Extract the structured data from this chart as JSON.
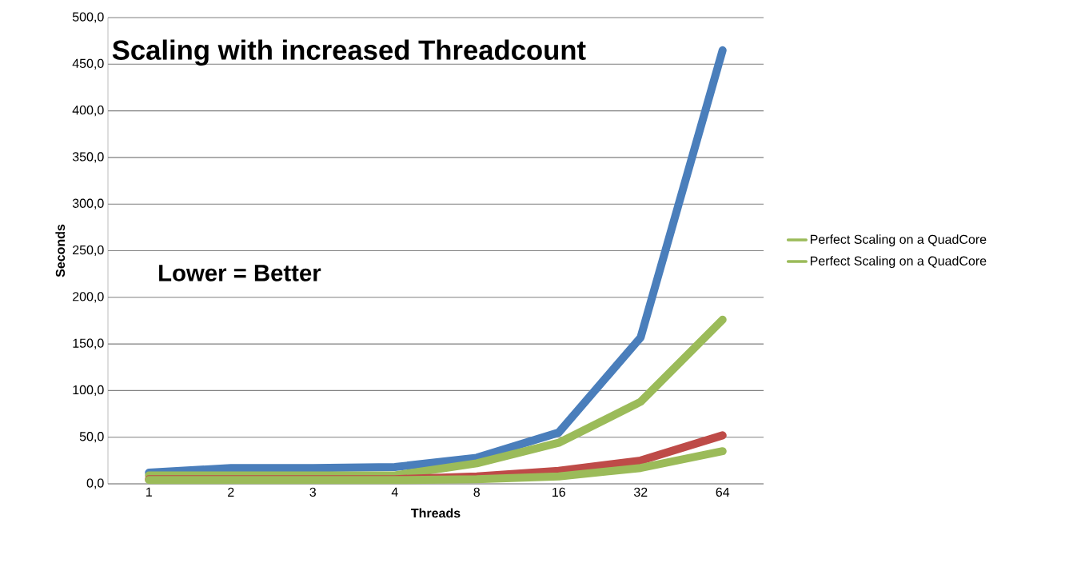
{
  "chart_data": {
    "type": "line",
    "title": "Scaling with increased Threadcount",
    "xlabel": "Threads",
    "ylabel": "Seconds",
    "annotations": [
      "Lower = Better"
    ],
    "categories": [
      "1",
      "2",
      "3",
      "4",
      "8",
      "16",
      "32",
      "64"
    ],
    "series": [
      {
        "color": "#4a7ebb",
        "values": [
          12,
          17,
          17,
          18,
          28,
          55,
          157,
          465
        ]
      },
      {
        "name": "Perfect Scaling on a QuadCore",
        "color": "#9bbb59",
        "values": [
          9,
          9,
          9,
          9,
          22,
          44,
          88,
          176
        ]
      },
      {
        "color": "#be4b48",
        "values": [
          5,
          5,
          5,
          5,
          8,
          14,
          25,
          52
        ]
      },
      {
        "name": "Perfect Scaling on a QuadCore",
        "color": "#9bbb59",
        "values": [
          4,
          4,
          4,
          4,
          5,
          8,
          17,
          35
        ]
      }
    ],
    "ylim": [
      0,
      500
    ],
    "yticks": [
      {
        "value": 0,
        "label": "0,0"
      },
      {
        "value": 50,
        "label": "50,0"
      },
      {
        "value": 100,
        "label": "100,0"
      },
      {
        "value": 150,
        "label": "150,0"
      },
      {
        "value": 200,
        "label": "200,0"
      },
      {
        "value": 250,
        "label": "250,0"
      },
      {
        "value": 300,
        "label": "300,0"
      },
      {
        "value": 350,
        "label": "350,0"
      },
      {
        "value": 400,
        "label": "400,0"
      },
      {
        "value": 450,
        "label": "450,0"
      },
      {
        "value": 500,
        "label": "500,0"
      }
    ],
    "grid": "y",
    "legend": "right",
    "marker": "none",
    "line_style": "solid"
  }
}
